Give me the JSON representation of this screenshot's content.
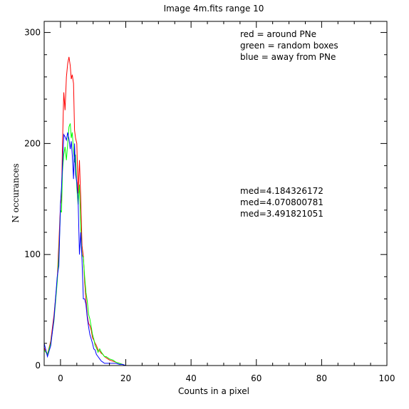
{
  "chart_data": {
    "type": "line",
    "title": "Image 4m.fits   range 10",
    "xlabel": "Counts in a pixel",
    "ylabel": "N occurances",
    "xlim": [
      -5,
      100
    ],
    "ylim": [
      0,
      310
    ],
    "xticks": [
      0,
      20,
      40,
      60,
      80,
      100
    ],
    "yticks": [
      0,
      100,
      200,
      300
    ],
    "x_minor_step": 5,
    "y_minor_step": 20,
    "grid": false,
    "legend": {
      "position": "top-right",
      "entries": [
        {
          "text": "red = around PNe",
          "color": "#ff0000"
        },
        {
          "text": "green = random boxes",
          "color": "#00ff00"
        },
        {
          "text": "blue = away from PNe",
          "color": "#0000ff"
        }
      ]
    },
    "annotations": [
      {
        "text": "med=4.184326172",
        "color": "#ff0000"
      },
      {
        "text": "med=4.070800781",
        "color": "#00ff00"
      },
      {
        "text": "med=3.491821051",
        "color": "#0000ff"
      }
    ],
    "series": [
      {
        "color": "#ff0000",
        "x": [
          -5,
          -4,
          -3,
          -2,
          -1,
          -0.5,
          0,
          0.3,
          0.6,
          1,
          1.4,
          1.8,
          2.2,
          2.6,
          3,
          3.3,
          3.6,
          4,
          4.3,
          4.6,
          5,
          5.4,
          5.8,
          6.2,
          6.6,
          7,
          7.4,
          7.8,
          8.2,
          8.6,
          9,
          9.4,
          9.8,
          10.2,
          10.6,
          11,
          11.5,
          12,
          12.5,
          13,
          13.5,
          14,
          15,
          16,
          17,
          18,
          19,
          20
        ],
        "y": [
          16,
          10,
          22,
          45,
          77,
          110,
          145,
          150,
          200,
          246,
          230,
          260,
          272,
          278,
          270,
          258,
          262,
          254,
          212,
          205,
          200,
          155,
          185,
          150,
          108,
          98,
          75,
          60,
          45,
          38,
          36,
          32,
          25,
          23,
          20,
          18,
          14,
          13,
          11,
          10,
          8,
          7,
          5,
          4,
          3,
          2,
          1,
          0
        ]
      },
      {
        "color": "#00ff00",
        "x": [
          -5,
          -4,
          -3,
          -2,
          -1,
          -0.5,
          0,
          0.3,
          0.6,
          1,
          1.4,
          1.8,
          2.2,
          2.6,
          3,
          3.3,
          3.6,
          4,
          4.3,
          4.6,
          5,
          5.4,
          5.8,
          6.2,
          6.6,
          7,
          7.4,
          7.8,
          8.2,
          8.6,
          9,
          9.4,
          9.8,
          10.2,
          10.6,
          11,
          11.5,
          12,
          12.5,
          13,
          13.5,
          14,
          15,
          16,
          17,
          18,
          19,
          20
        ],
        "y": [
          14,
          10,
          20,
          40,
          75,
          100,
          140,
          138,
          175,
          190,
          197,
          185,
          200,
          215,
          218,
          205,
          210,
          193,
          183,
          190,
          160,
          145,
          163,
          125,
          100,
          97,
          80,
          66,
          58,
          46,
          42,
          35,
          28,
          24,
          18,
          16,
          12,
          15,
          12,
          10,
          8,
          8,
          6,
          5,
          3,
          2,
          1,
          0
        ]
      },
      {
        "color": "#0000ff",
        "x": [
          -5,
          -4,
          -3,
          -2,
          -1,
          -0.5,
          0,
          0.3,
          0.6,
          1,
          1.4,
          1.8,
          2.2,
          2.6,
          3,
          3.3,
          3.6,
          4,
          4.3,
          4.6,
          5,
          5.4,
          5.8,
          6.2,
          6.6,
          7,
          7.4,
          7.8,
          8.2,
          8.6,
          9,
          9.4,
          9.8,
          10.2,
          10.6,
          11,
          11.5,
          12,
          12.5,
          13,
          13.5,
          14,
          15,
          16,
          17,
          18,
          19,
          20
        ],
        "y": [
          20,
          8,
          18,
          42,
          80,
          90,
          146,
          160,
          180,
          208,
          206,
          203,
          210,
          204,
          195,
          202,
          190,
          168,
          200,
          172,
          165,
          150,
          100,
          120,
          95,
          60,
          60,
          55,
          43,
          35,
          28,
          24,
          20,
          15,
          14,
          10,
          8,
          6,
          4,
          3,
          2,
          2,
          2,
          2,
          2,
          1,
          1,
          0
        ]
      }
    ]
  }
}
